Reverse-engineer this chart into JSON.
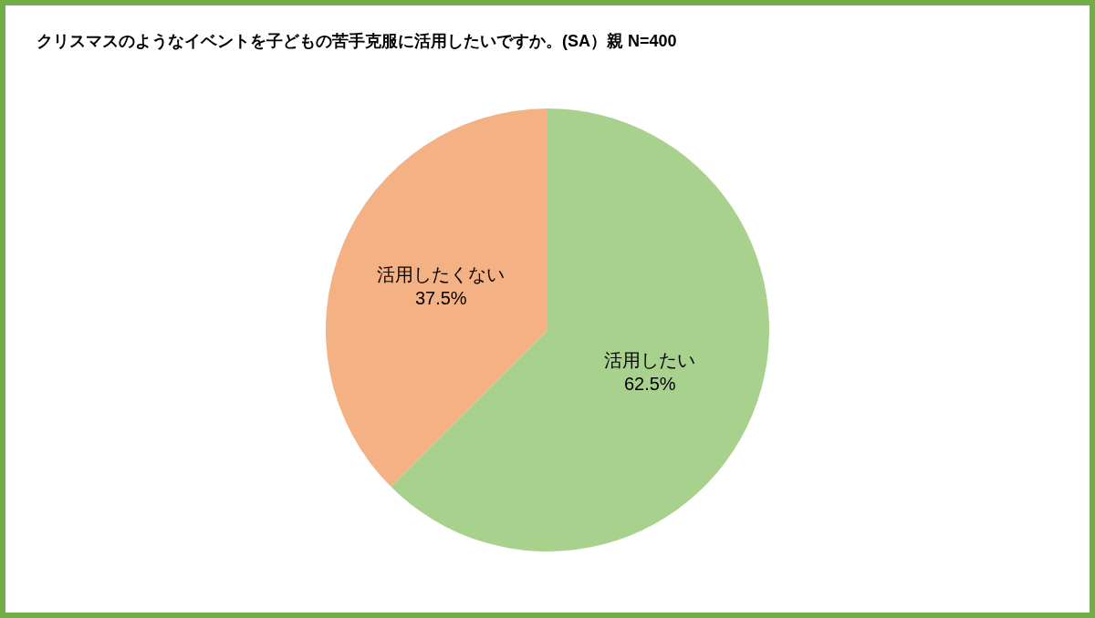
{
  "chart_data": {
    "type": "pie",
    "title": "クリスマスのようなイベントを子どもの苦手克服に活用したいですか。(SA）親 N=400",
    "categories": [
      "活用したい",
      "活用したくない"
    ],
    "values": [
      62.5,
      37.5
    ],
    "value_labels": [
      "62.5%",
      "37.5%"
    ],
    "colors": [
      "#a9d18e",
      "#f4b183"
    ],
    "legend": false
  }
}
